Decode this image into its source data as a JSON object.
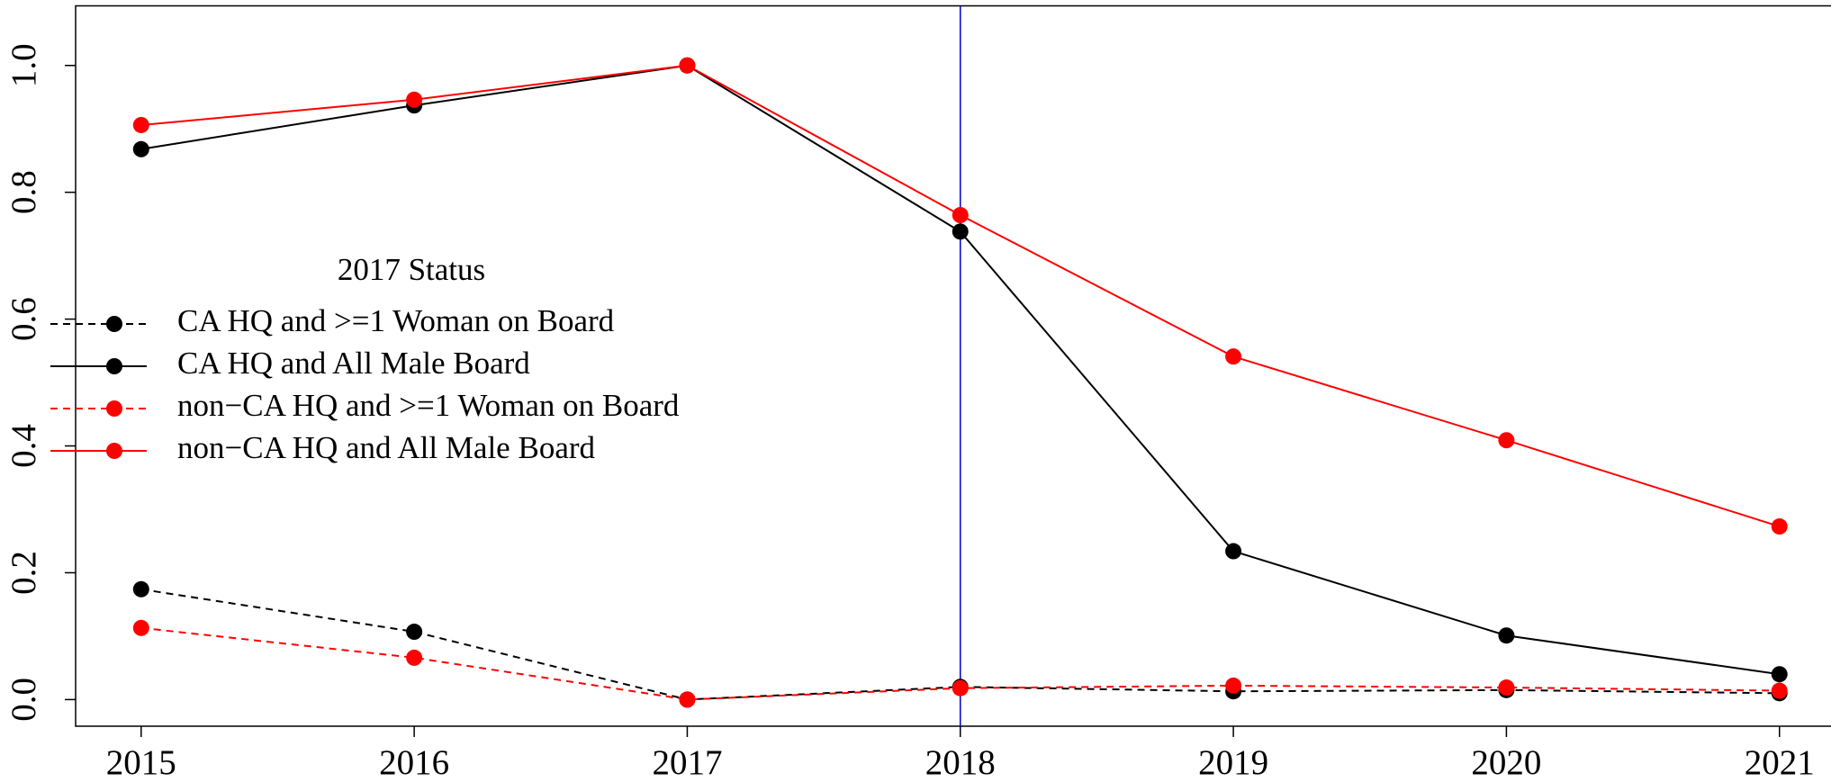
{
  "chart_data": {
    "type": "line",
    "x": [
      2015,
      2016,
      2017,
      2018,
      2019,
      2020,
      2021
    ],
    "xlim": [
      2014.76,
      2021.24
    ],
    "xticks": [
      2015,
      2016,
      2017,
      2018,
      2019,
      2020,
      2021
    ],
    "ylim": [
      -0.042,
      1.094
    ],
    "yticks": [
      {
        "value": 0,
        "label": "0.0"
      },
      {
        "value": 0.2,
        "label": "0.2"
      },
      {
        "value": 0.4,
        "label": "0.4"
      },
      {
        "value": 0.6,
        "label": "0.6"
      },
      {
        "value": 0.8,
        "label": "0.8"
      },
      {
        "value": 1,
        "label": "1.0"
      }
    ],
    "legend_title": "2017 Status",
    "vline": {
      "x": 2018,
      "color": "#0000cc"
    },
    "series": [
      {
        "name": "CA HQ and >=1 Woman on Board",
        "color": "#000000",
        "dashed": true,
        "values": [
          0.174,
          0.107,
          0.0,
          0.02,
          0.013,
          0.015,
          0.01
        ]
      },
      {
        "name": "CA HQ and All Male Board",
        "color": "#000000",
        "dashed": false,
        "values": [
          0.868,
          0.937,
          1.0,
          0.738,
          0.234,
          0.101,
          0.04
        ]
      },
      {
        "name": "non−CA HQ and >=1 Woman on Board",
        "color": "#ff0000",
        "dashed": true,
        "values": [
          0.113,
          0.066,
          0.0,
          0.018,
          0.022,
          0.019,
          0.014
        ]
      },
      {
        "name": "non−CA HQ and All Male Board",
        "color": "#ff0000",
        "dashed": false,
        "values": [
          0.906,
          0.946,
          1.0,
          0.764,
          0.541,
          0.409,
          0.273
        ]
      }
    ]
  }
}
